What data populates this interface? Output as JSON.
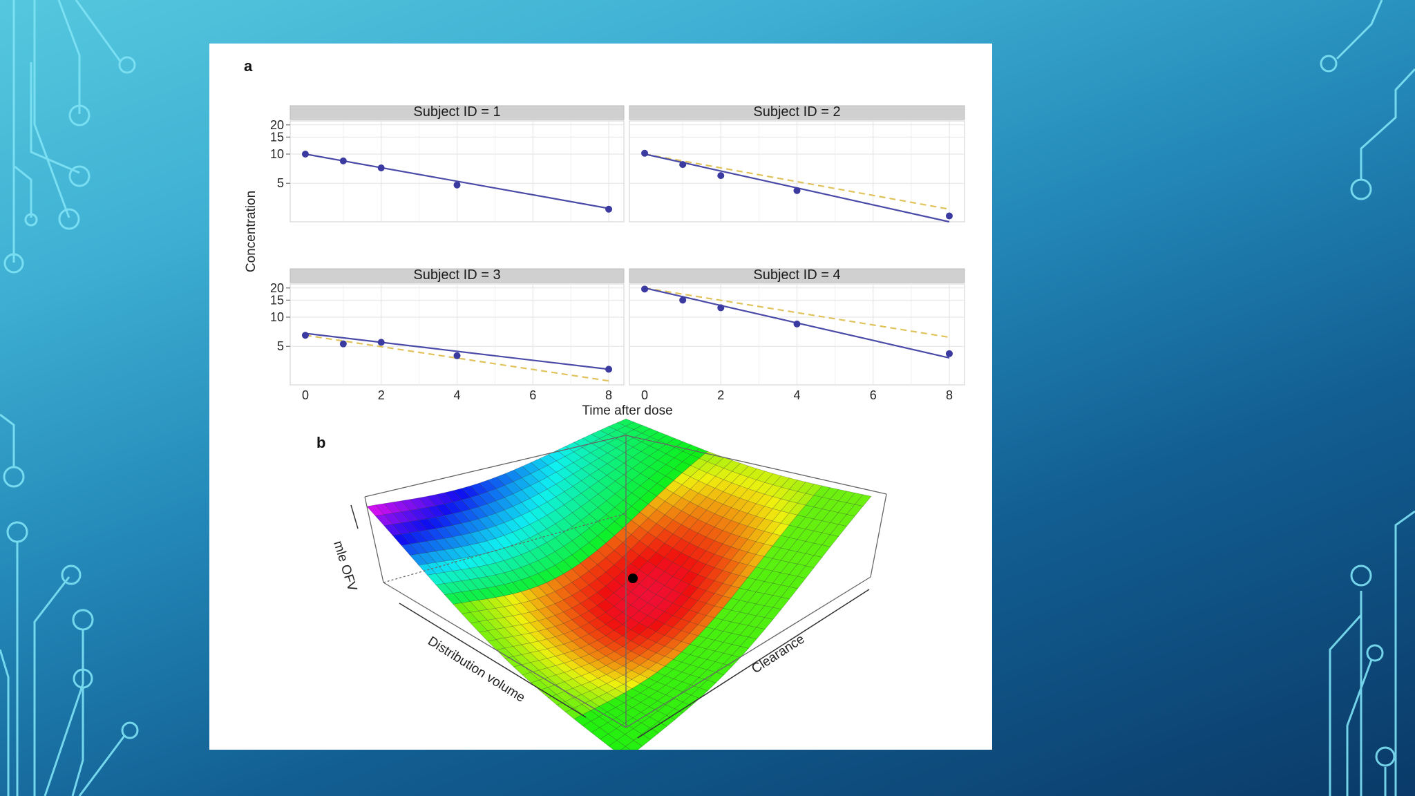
{
  "colors": {
    "background_top": "#55c8de",
    "background_bottom": "#0a3a68",
    "circuit_lines": "#7fe3f5",
    "fit_line": "#4a4aa8",
    "population_line": "#e0c25a",
    "data_point": "#3a3aa0",
    "strip": "#d0d0d0"
  },
  "figure": {
    "panel_a_label": "a",
    "panel_b_label": "b"
  },
  "chart_data": [
    {
      "type": "line",
      "panel": "a",
      "xlabel": "Time after dose",
      "ylabel": "Concentration",
      "xlim": [
        -0.4,
        8.4
      ],
      "ylim": [
        2.0,
        22.0
      ],
      "y_scale": "log",
      "xticks": [
        "0",
        "2",
        "4",
        "6",
        "8"
      ],
      "yticks": [
        "5",
        "10",
        "15",
        "20"
      ],
      "grid": true,
      "facets": [
        {
          "strip": "Subject ID = 1",
          "observed": {
            "x": [
              0,
              1,
              2,
              4,
              8
            ],
            "y": [
              10.0,
              8.5,
              7.2,
              4.8,
              2.7
            ]
          },
          "individual_fit": {
            "x": [
              0,
              8
            ],
            "y": [
              10.0,
              2.75
            ]
          },
          "population_fit": null
        },
        {
          "strip": "Subject ID = 2",
          "observed": {
            "x": [
              0,
              1,
              2,
              4,
              8
            ],
            "y": [
              10.2,
              7.8,
              6.0,
              4.2,
              2.3
            ]
          },
          "individual_fit": {
            "x": [
              0,
              8
            ],
            "y": [
              10.0,
              2.0
            ]
          },
          "population_fit": {
            "x": [
              0,
              8
            ],
            "y": [
              10.0,
              2.7
            ]
          }
        },
        {
          "strip": "Subject ID = 3",
          "observed": {
            "x": [
              0,
              1,
              2,
              4,
              8
            ],
            "y": [
              6.5,
              5.3,
              5.5,
              4.0,
              2.9
            ]
          },
          "individual_fit": {
            "x": [
              0,
              8
            ],
            "y": [
              6.8,
              2.9
            ]
          },
          "population_fit": {
            "x": [
              0,
              8
            ],
            "y": [
              6.5,
              2.2
            ]
          }
        },
        {
          "strip": "Subject ID = 4",
          "observed": {
            "x": [
              0,
              1,
              2,
              4,
              8
            ],
            "y": [
              19.5,
              15.0,
              12.5,
              8.5,
              4.2
            ]
          },
          "individual_fit": {
            "x": [
              0,
              8
            ],
            "y": [
              20.0,
              3.8
            ]
          },
          "population_fit": {
            "x": [
              0,
              8
            ],
            "y": [
              20.0,
              6.2
            ]
          }
        }
      ]
    },
    {
      "type": "surface",
      "panel": "b",
      "xlabel": "Distribution volume",
      "ylabel": "Clearance",
      "zlabel": "mle OFV",
      "colormap": "rainbow",
      "grid_size": 30,
      "minimum": {
        "marker": "black point",
        "position": "center of surface"
      }
    }
  ]
}
